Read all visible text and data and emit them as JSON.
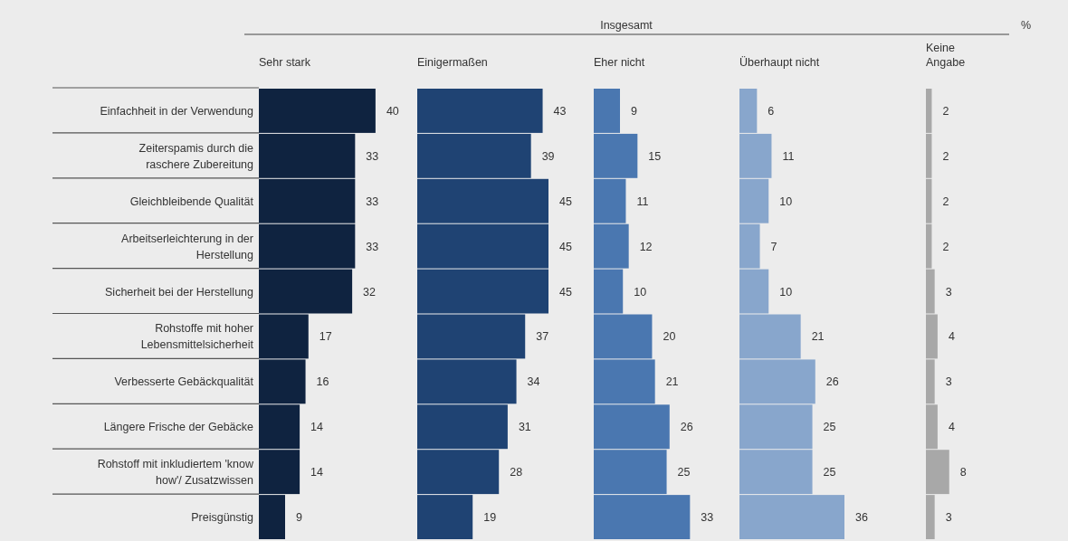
{
  "chart_data": [
    {
      "type": "bar",
      "orientation": "horizontal",
      "title": "Sehr stark",
      "annotations": [
        "Insgesamt",
        "%"
      ],
      "data_labels": true,
      "tick_labels": "y",
      "color": "#0f2340",
      "categories": [
        "Einfachheit in der Verwendung",
        "Zeiterspamis durch die raschere Zubereitung",
        "Gleichbleibende Qualität",
        "Arbeitserleichterung in der Herstellung",
        "Sicherheit bei der Herstellung",
        "Rohstoffe mit hoher Lebensmittelsicherheit",
        "Verbesserte Gebäckqualität",
        "Längere Frische der Gebäcke",
        "Rohstoff mit inkludiertem 'know how'/ Zusatzwissen",
        "Preisgünstig"
      ],
      "values": [
        40,
        33,
        33,
        33,
        32,
        17,
        16,
        14,
        14,
        9
      ]
    },
    {
      "type": "bar",
      "orientation": "horizontal",
      "title": "Einigermaßen",
      "data_labels": true,
      "tick_labels": false,
      "color": "#1f4373",
      "categories": [
        null,
        null,
        null,
        null,
        null,
        null,
        null,
        null,
        null,
        null
      ],
      "values": [
        43,
        39,
        45,
        45,
        45,
        37,
        34,
        31,
        28,
        19
      ]
    },
    {
      "type": "bar",
      "orientation": "horizontal",
      "title": "Eher nicht",
      "data_labels": true,
      "tick_labels": false,
      "color": "#4a77b0",
      "categories": [
        null,
        null,
        null,
        null,
        null,
        null,
        null,
        null,
        null,
        null
      ],
      "values": [
        9,
        15,
        11,
        12,
        10,
        20,
        21,
        26,
        25,
        33
      ]
    },
    {
      "type": "bar",
      "orientation": "horizontal",
      "title": "Überhaupt nicht",
      "data_labels": true,
      "tick_labels": false,
      "color": "#88a6cc",
      "categories": [
        null,
        null,
        null,
        null,
        null,
        null,
        null,
        null,
        null,
        null
      ],
      "values": [
        6,
        11,
        10,
        7,
        10,
        21,
        26,
        25,
        25,
        36
      ]
    },
    {
      "type": "bar",
      "orientation": "horizontal",
      "title": "Keine Angabe",
      "data_labels": true,
      "tick_labels": false,
      "color": "#a8a8a8",
      "categories": [
        null,
        null,
        null,
        null,
        null,
        null,
        null,
        null,
        null,
        null
      ],
      "values": [
        2,
        2,
        2,
        2,
        3,
        4,
        3,
        4,
        8,
        3
      ]
    }
  ]
}
